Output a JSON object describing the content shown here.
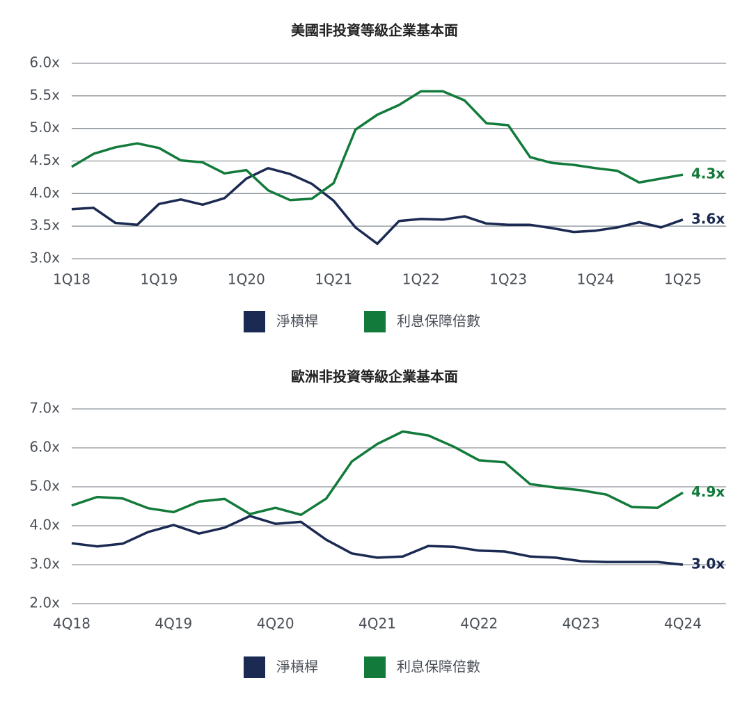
{
  "chart_data": [
    {
      "type": "line",
      "title": "美國非投資等級企業基本面",
      "categories": [
        "1Q18",
        null,
        null,
        null,
        "1Q19",
        null,
        null,
        null,
        "1Q20",
        null,
        null,
        null,
        "1Q21",
        null,
        null,
        null,
        "1Q22",
        null,
        null,
        null,
        "1Q23",
        null,
        null,
        null,
        "1Q24",
        null,
        null,
        null,
        "1Q25"
      ],
      "series": [
        {
          "name": "淨槓桿",
          "color": "#1b2a52",
          "values": [
            3.76,
            3.78,
            3.55,
            3.52,
            3.84,
            3.91,
            3.83,
            3.93,
            4.23,
            4.39,
            4.3,
            4.15,
            3.89,
            3.48,
            3.23,
            3.58,
            3.61,
            3.6,
            3.65,
            3.54,
            3.52,
            3.52,
            3.47,
            3.41,
            3.43,
            3.48,
            3.56,
            3.48,
            3.6
          ],
          "value_labels": [
            null,
            null,
            null,
            null,
            null,
            null,
            null,
            null,
            null,
            null,
            null,
            null,
            null,
            null,
            null,
            null,
            null,
            null,
            null,
            null,
            null,
            null,
            null,
            null,
            null,
            null,
            null,
            null,
            "3.6x"
          ]
        },
        {
          "name": "利息保障倍數",
          "color": "#127a3a",
          "values": [
            4.41,
            4.61,
            4.71,
            4.77,
            4.7,
            4.51,
            4.48,
            4.31,
            4.36,
            4.05,
            3.9,
            3.92,
            4.16,
            4.98,
            5.21,
            5.36,
            5.57,
            5.57,
            5.43,
            5.08,
            5.05,
            4.56,
            4.47,
            4.44,
            4.39,
            4.35,
            4.17,
            4.23,
            4.29
          ],
          "value_labels": [
            null,
            null,
            null,
            null,
            null,
            null,
            null,
            null,
            null,
            null,
            null,
            null,
            null,
            null,
            null,
            null,
            null,
            null,
            null,
            null,
            null,
            null,
            null,
            null,
            null,
            null,
            null,
            null,
            "4.3x"
          ]
        }
      ],
      "ylim": [
        3.0,
        6.0
      ],
      "yticks": [
        {
          "value": 3.0,
          "label": "3.0x"
        },
        {
          "value": 3.5,
          "label": "3.5x"
        },
        {
          "value": 4.0,
          "label": "4.0x"
        },
        {
          "value": 4.5,
          "label": "4.5x"
        },
        {
          "value": 5.0,
          "label": "5.0x"
        },
        {
          "value": 5.5,
          "label": "5.5x"
        },
        {
          "value": 6.0,
          "label": "6.0x"
        }
      ],
      "grid": true
    },
    {
      "type": "line",
      "title": "歐洲非投資等級企業基本面",
      "categories": [
        "4Q18",
        null,
        null,
        null,
        "4Q19",
        null,
        null,
        null,
        "4Q20",
        null,
        null,
        null,
        "4Q21",
        null,
        null,
        null,
        "4Q22",
        null,
        null,
        null,
        "4Q23",
        null,
        null,
        null,
        "4Q24"
      ],
      "series": [
        {
          "name": "淨槓桿",
          "color": "#1b2a52",
          "values": [
            3.55,
            3.47,
            3.54,
            3.84,
            4.02,
            3.8,
            3.95,
            4.25,
            4.05,
            4.1,
            3.64,
            3.29,
            3.18,
            3.21,
            3.48,
            3.46,
            3.36,
            3.34,
            3.21,
            3.18,
            3.09,
            3.07,
            3.07,
            3.07,
            3.0
          ],
          "value_labels": [
            null,
            null,
            null,
            null,
            null,
            null,
            null,
            null,
            null,
            null,
            null,
            null,
            null,
            null,
            null,
            null,
            null,
            null,
            null,
            null,
            null,
            null,
            null,
            null,
            "3.0x"
          ]
        },
        {
          "name": "利息保障倍數",
          "color": "#127a3a",
          "values": [
            4.52,
            4.74,
            4.7,
            4.45,
            4.35,
            4.62,
            4.69,
            4.3,
            4.46,
            4.28,
            4.7,
            5.65,
            6.1,
            6.42,
            6.32,
            6.03,
            5.68,
            5.63,
            5.07,
            4.98,
            4.91,
            4.8,
            4.48,
            4.46,
            4.85
          ],
          "value_labels": [
            null,
            null,
            null,
            null,
            null,
            null,
            null,
            null,
            null,
            null,
            null,
            null,
            null,
            null,
            null,
            null,
            null,
            null,
            null,
            null,
            null,
            null,
            null,
            null,
            "4.9x"
          ]
        }
      ],
      "ylim": [
        2.0,
        7.0
      ],
      "yticks": [
        {
          "value": 2.0,
          "label": "2.0x"
        },
        {
          "value": 3.0,
          "label": "3.0x"
        },
        {
          "value": 4.0,
          "label": "4.0x"
        },
        {
          "value": 5.0,
          "label": "5.0x"
        },
        {
          "value": 6.0,
          "label": "6.0x"
        },
        {
          "value": 7.0,
          "label": "7.0x"
        }
      ],
      "grid": true
    }
  ]
}
